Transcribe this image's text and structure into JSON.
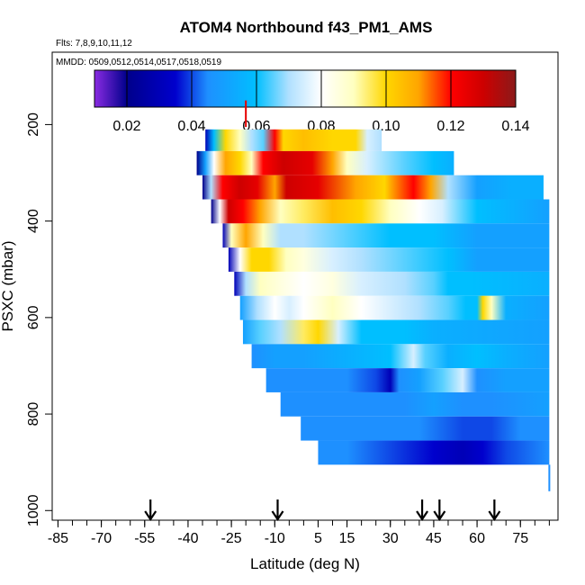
{
  "chart_data": {
    "type": "heatmap",
    "title": "ATOM4 Northbound f43_PM1_AMS",
    "flights_label": "Flts: 7,8,9,10,11,12",
    "dates_label": "MMDD: 0509,0512,0514,0517,0518,0519",
    "xlabel": "Latitude (deg N)",
    "ylabel": "PSXC (mbar)",
    "xlim": [
      -87,
      88
    ],
    "ylim": [
      1020,
      50
    ],
    "x_ticks": [
      -85,
      -70,
      -55,
      -40,
      -25,
      -10,
      5,
      15,
      30,
      45,
      60,
      75
    ],
    "x_ticks_labels": [
      "-85",
      "-70",
      "-55",
      "-40",
      "-25",
      "-10",
      "5",
      "15",
      "30",
      "45",
      "60",
      "75"
    ],
    "y_ticks": [
      200,
      400,
      600,
      800,
      1000
    ],
    "y_ticks_labels": [
      "200",
      "400",
      "600",
      "800",
      "1000"
    ],
    "colorbar": {
      "min": 0.01,
      "max": 0.14,
      "ticks": [
        0.02,
        0.04,
        0.06,
        0.08,
        0.1,
        0.12,
        0.14
      ],
      "tick_labels": [
        "0.02",
        "0.04",
        "0.06",
        "0.08",
        "0.10",
        "0.12",
        "0.14"
      ],
      "stops": [
        [
          0.01,
          "#8a2be2"
        ],
        [
          0.02,
          "#00008b"
        ],
        [
          0.035,
          "#0000cd"
        ],
        [
          0.045,
          "#1e90ff"
        ],
        [
          0.06,
          "#00bfff"
        ],
        [
          0.07,
          "#b0e0ff"
        ],
        [
          0.08,
          "#ffffff"
        ],
        [
          0.09,
          "#ffffc0"
        ],
        [
          0.1,
          "#ffd700"
        ],
        [
          0.11,
          "#ffa500"
        ],
        [
          0.12,
          "#ff0000"
        ],
        [
          0.13,
          "#cd0000"
        ],
        [
          0.14,
          "#8b1a1a"
        ]
      ]
    },
    "arrow_latitudes": [
      -53,
      -9,
      41,
      47,
      66
    ],
    "bands": [
      {
        "p_top": 210,
        "p_bot": 255,
        "lat_start": -34,
        "lat_end": 27,
        "profile": [
          [
            -34,
            0.03
          ],
          [
            -31,
            0.06
          ],
          [
            -27,
            0.1
          ],
          [
            -22,
            0.09
          ],
          [
            -18,
            0.07
          ],
          [
            -14,
            0.065
          ],
          [
            -10,
            0.12
          ],
          [
            -7,
            0.1
          ],
          [
            0,
            0.105
          ],
          [
            10,
            0.1
          ],
          [
            18,
            0.1
          ],
          [
            22,
            0.075
          ],
          [
            27,
            0.07
          ]
        ]
      },
      {
        "p_top": 255,
        "p_bot": 305,
        "lat_start": -37,
        "lat_end": 52,
        "profile": [
          [
            -37,
            0.02
          ],
          [
            -34,
            0.05
          ],
          [
            -31,
            0.08
          ],
          [
            -27,
            0.11
          ],
          [
            -22,
            0.1
          ],
          [
            -18,
            0.09
          ],
          [
            -14,
            0.12
          ],
          [
            -7,
            0.13
          ],
          [
            3,
            0.125
          ],
          [
            10,
            0.11
          ],
          [
            15,
            0.09
          ],
          [
            22,
            0.075
          ],
          [
            35,
            0.065
          ],
          [
            45,
            0.06
          ],
          [
            52,
            0.055
          ]
        ]
      },
      {
        "p_top": 305,
        "p_bot": 355,
        "lat_start": -35,
        "lat_end": 83,
        "profile": [
          [
            -35,
            0.02
          ],
          [
            -32,
            0.07
          ],
          [
            -28,
            0.12
          ],
          [
            -22,
            0.13
          ],
          [
            -16,
            0.125
          ],
          [
            -10,
            0.11
          ],
          [
            -6,
            0.13
          ],
          [
            5,
            0.125
          ],
          [
            18,
            0.11
          ],
          [
            28,
            0.1
          ],
          [
            38,
            0.12
          ],
          [
            44,
            0.11
          ],
          [
            50,
            0.07
          ],
          [
            60,
            0.05
          ],
          [
            72,
            0.055
          ],
          [
            83,
            0.055
          ]
        ]
      },
      {
        "p_top": 355,
        "p_bot": 405,
        "lat_start": -32,
        "lat_end": 85,
        "profile": [
          [
            -32,
            0.02
          ],
          [
            -29,
            0.08
          ],
          [
            -26,
            0.13
          ],
          [
            -21,
            0.12
          ],
          [
            -15,
            0.11
          ],
          [
            -8,
            0.09
          ],
          [
            0,
            0.095
          ],
          [
            10,
            0.105
          ],
          [
            20,
            0.1
          ],
          [
            30,
            0.09
          ],
          [
            40,
            0.08
          ],
          [
            48,
            0.075
          ],
          [
            60,
            0.06
          ],
          [
            85,
            0.05
          ]
        ]
      },
      {
        "p_top": 405,
        "p_bot": 455,
        "lat_start": -28,
        "lat_end": 85,
        "profile": [
          [
            -28,
            0.03
          ],
          [
            -25,
            0.09
          ],
          [
            -20,
            0.11
          ],
          [
            -14,
            0.09
          ],
          [
            -8,
            0.07
          ],
          [
            0,
            0.07
          ],
          [
            15,
            0.065
          ],
          [
            30,
            0.06
          ],
          [
            45,
            0.06
          ],
          [
            60,
            0.05
          ],
          [
            85,
            0.05
          ]
        ]
      },
      {
        "p_top": 455,
        "p_bot": 505,
        "lat_start": -26,
        "lat_end": 85,
        "profile": [
          [
            -26,
            0.03
          ],
          [
            -22,
            0.08
          ],
          [
            -18,
            0.1
          ],
          [
            -12,
            0.1
          ],
          [
            -6,
            0.09
          ],
          [
            0,
            0.085
          ],
          [
            10,
            0.075
          ],
          [
            20,
            0.07
          ],
          [
            35,
            0.065
          ],
          [
            50,
            0.06
          ],
          [
            60,
            0.05
          ],
          [
            85,
            0.05
          ]
        ]
      },
      {
        "p_top": 505,
        "p_bot": 555,
        "lat_start": -24,
        "lat_end": 85,
        "profile": [
          [
            -24,
            0.03
          ],
          [
            -20,
            0.07
          ],
          [
            -15,
            0.09
          ],
          [
            -8,
            0.085
          ],
          [
            0,
            0.08
          ],
          [
            10,
            0.085
          ],
          [
            20,
            0.075
          ],
          [
            35,
            0.07
          ],
          [
            45,
            0.065
          ],
          [
            50,
            0.06
          ],
          [
            58,
            0.06
          ],
          [
            85,
            0.055
          ]
        ]
      },
      {
        "p_top": 555,
        "p_bot": 605,
        "lat_start": -22,
        "lat_end": 85,
        "profile": [
          [
            -22,
            0.05
          ],
          [
            -16,
            0.07
          ],
          [
            -10,
            0.08
          ],
          [
            -5,
            0.075
          ],
          [
            0,
            0.08
          ],
          [
            10,
            0.09
          ],
          [
            20,
            0.08
          ],
          [
            30,
            0.075
          ],
          [
            40,
            0.07
          ],
          [
            50,
            0.065
          ],
          [
            56,
            0.06
          ],
          [
            60,
            0.06
          ],
          [
            62,
            0.1
          ],
          [
            65,
            0.09
          ],
          [
            70,
            0.055
          ],
          [
            85,
            0.05
          ]
        ]
      },
      {
        "p_top": 605,
        "p_bot": 655,
        "lat_start": -21,
        "lat_end": 85,
        "profile": [
          [
            -21,
            0.05
          ],
          [
            -15,
            0.065
          ],
          [
            -8,
            0.07
          ],
          [
            0,
            0.095
          ],
          [
            5,
            0.1
          ],
          [
            12,
            0.075
          ],
          [
            20,
            0.06
          ],
          [
            35,
            0.06
          ],
          [
            45,
            0.055
          ],
          [
            85,
            0.05
          ]
        ]
      },
      {
        "p_top": 655,
        "p_bot": 705,
        "lat_start": -18,
        "lat_end": 85,
        "profile": [
          [
            -18,
            0.045
          ],
          [
            -10,
            0.05
          ],
          [
            0,
            0.05
          ],
          [
            15,
            0.055
          ],
          [
            30,
            0.06
          ],
          [
            38,
            0.075
          ],
          [
            42,
            0.065
          ],
          [
            50,
            0.055
          ],
          [
            60,
            0.06
          ],
          [
            70,
            0.055
          ],
          [
            85,
            0.05
          ]
        ]
      },
      {
        "p_top": 705,
        "p_bot": 755,
        "lat_start": -13,
        "lat_end": 85,
        "profile": [
          [
            -13,
            0.045
          ],
          [
            -5,
            0.045
          ],
          [
            5,
            0.045
          ],
          [
            15,
            0.045
          ],
          [
            25,
            0.04
          ],
          [
            30,
            0.03
          ],
          [
            33,
            0.045
          ],
          [
            40,
            0.05
          ],
          [
            48,
            0.065
          ],
          [
            55,
            0.075
          ],
          [
            60,
            0.045
          ],
          [
            70,
            0.05
          ],
          [
            85,
            0.05
          ]
        ]
      },
      {
        "p_top": 755,
        "p_bot": 805,
        "lat_start": -8,
        "lat_end": 85,
        "profile": [
          [
            -8,
            0.045
          ],
          [
            5,
            0.045
          ],
          [
            20,
            0.045
          ],
          [
            35,
            0.045
          ],
          [
            45,
            0.05
          ],
          [
            55,
            0.045
          ],
          [
            65,
            0.045
          ],
          [
            85,
            0.05
          ]
        ]
      },
      {
        "p_top": 805,
        "p_bot": 855,
        "lat_start": -1,
        "lat_end": 85,
        "profile": [
          [
            -1,
            0.045
          ],
          [
            10,
            0.045
          ],
          [
            25,
            0.045
          ],
          [
            40,
            0.045
          ],
          [
            55,
            0.04
          ],
          [
            65,
            0.04
          ],
          [
            75,
            0.045
          ],
          [
            85,
            0.045
          ]
        ]
      },
      {
        "p_top": 855,
        "p_bot": 905,
        "lat_start": 5,
        "lat_end": 85,
        "profile": [
          [
            5,
            0.045
          ],
          [
            15,
            0.045
          ],
          [
            30,
            0.04
          ],
          [
            45,
            0.035
          ],
          [
            55,
            0.03
          ],
          [
            62,
            0.035
          ],
          [
            70,
            0.04
          ],
          [
            85,
            0.045
          ]
        ]
      }
    ],
    "spike_points": [
      {
        "lat": -20,
        "p_top": 150,
        "p_bot": 205,
        "value": 0.125
      },
      {
        "lat": 85,
        "p_top": 905,
        "p_bot": 960,
        "value": 0.045
      }
    ]
  }
}
